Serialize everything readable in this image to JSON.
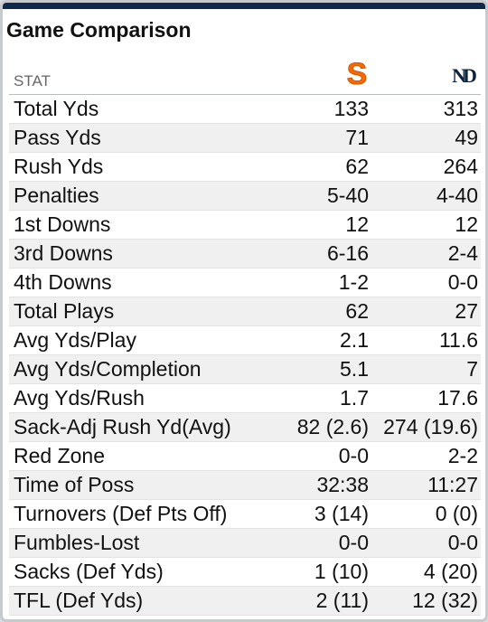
{
  "title": "Game Comparison",
  "colors": {
    "header_bar": "#0f2a4a",
    "syracuse_orange": "#f76900",
    "notre_dame_navy": "#0c2340"
  },
  "table": {
    "stat_header": "STAT",
    "team_a": {
      "logo_icon": "syracuse-s-logo-icon",
      "logo_text": "S"
    },
    "team_b": {
      "logo_icon": "notre-dame-nd-logo-icon",
      "logo_text": "ND"
    },
    "rows": [
      {
        "stat": "Total Yds",
        "a": "133",
        "b": "313"
      },
      {
        "stat": "Pass Yds",
        "a": "71",
        "b": "49"
      },
      {
        "stat": "Rush Yds",
        "a": "62",
        "b": "264"
      },
      {
        "stat": "Penalties",
        "a": "5-40",
        "b": "4-40"
      },
      {
        "stat": "1st Downs",
        "a": "12",
        "b": "12"
      },
      {
        "stat": "3rd Downs",
        "a": "6-16",
        "b": "2-4"
      },
      {
        "stat": "4th Downs",
        "a": "1-2",
        "b": "0-0"
      },
      {
        "stat": "Total Plays",
        "a": "62",
        "b": "27"
      },
      {
        "stat": "Avg Yds/Play",
        "a": "2.1",
        "b": "11.6"
      },
      {
        "stat": "Avg Yds/Completion",
        "a": "5.1",
        "b": "7"
      },
      {
        "stat": "Avg Yds/Rush",
        "a": "1.7",
        "b": "17.6"
      },
      {
        "stat": "Sack-Adj Rush Yd(Avg)",
        "a": "82 (2.6)",
        "b": "274 (19.6)"
      },
      {
        "stat": "Red Zone",
        "a": "0-0",
        "b": "2-2"
      },
      {
        "stat": "Time of Poss",
        "a": "32:38",
        "b": "11:27"
      },
      {
        "stat": "Turnovers (Def Pts Off)",
        "a": "3 (14)",
        "b": "0 (0)"
      },
      {
        "stat": "Fumbles-Lost",
        "a": "0-0",
        "b": "0-0"
      },
      {
        "stat": "Sacks (Def Yds)",
        "a": "1 (10)",
        "b": "4 (20)"
      },
      {
        "stat": "TFL (Def Yds)",
        "a": "2 (11)",
        "b": "12 (32)"
      }
    ]
  }
}
